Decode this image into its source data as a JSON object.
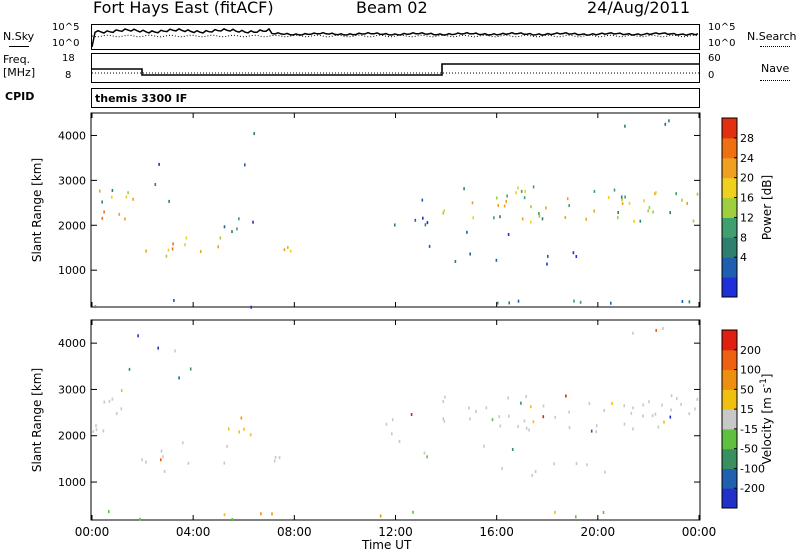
{
  "header": {
    "station": "Fort Hays East (fitACF)",
    "beam": "Beam 02",
    "date": "24/Aug/2011"
  },
  "top_panels": {
    "noise_left_label": "N.Sky",
    "noise_left_ticks": [
      "10^5",
      "10^0"
    ],
    "noise_right_ticks": [
      "10^5",
      "10^0"
    ],
    "noise_right_label": "N.Search",
    "freq_label_top": "Freq.",
    "freq_label_unit": "[MHz]",
    "freq_ticks": [
      "18",
      "8"
    ],
    "nave_ticks": [
      "60",
      "0"
    ],
    "nave_label": "Nave",
    "cpid_label": "CPID",
    "cpid_value": "themis 3300 IF"
  },
  "chart_data": [
    {
      "type": "heatmap",
      "name": "power",
      "ylabel": "Slant Range [km]",
      "xlabel": "Time UT",
      "ylim": [
        180,
        4500
      ],
      "xlim": [
        0,
        24
      ],
      "y_ticks": [
        1000,
        2000,
        3000,
        4000
      ],
      "colorbar_label": "Power [dB]",
      "colorbar_ticks": [
        "28",
        "24",
        "20",
        "16",
        "12",
        "8",
        "4"
      ],
      "colors": [
        "#1f30d8",
        "#1f5fb0",
        "#2f7f6f",
        "#3f9f6f",
        "#9fcf3f",
        "#efd01f",
        "#efa01f",
        "#ef7010",
        "#e03010"
      ]
    },
    {
      "type": "heatmap",
      "name": "velocity",
      "ylabel": "Slant Range [km]",
      "xlabel": "Time UT",
      "ylim": [
        180,
        4500
      ],
      "xlim": [
        0,
        24
      ],
      "y_ticks": [
        1000,
        2000,
        3000,
        4000
      ],
      "colorbar_label": "Velocity [m s",
      "colorbar_label_sup": "-1",
      "colorbar_label_end": "]",
      "colorbar_ticks": [
        "200",
        "100",
        "50",
        "15",
        "-15",
        "-50",
        "-100",
        "-200"
      ],
      "colors": [
        "#2030c8",
        "#2060b0",
        "#3a8f5f",
        "#5fbf3f",
        "#c8c8c8",
        "#efc010",
        "#ef8f10",
        "#ef6010",
        "#e02010"
      ]
    }
  ],
  "x_tick_labels": [
    "00:00",
    "04:00",
    "08:00",
    "12:00",
    "16:00",
    "20:00",
    "00:00"
  ],
  "x_axis_label": "Time UT"
}
